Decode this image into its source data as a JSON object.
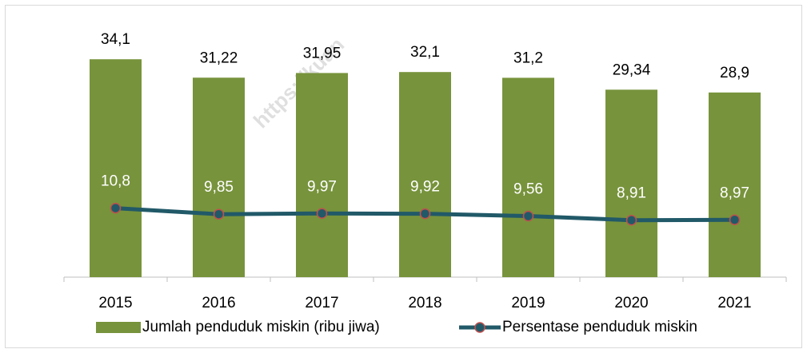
{
  "chart_data": {
    "type": "bar_line",
    "categories": [
      "2015",
      "2016",
      "2017",
      "2018",
      "2019",
      "2020",
      "2021"
    ],
    "series": [
      {
        "name": "Jumlah penduduk miskin (ribu jiwa)",
        "type": "bar",
        "color": "#77933c",
        "values": [
          34.1,
          31.22,
          31.95,
          32.1,
          31.2,
          29.34,
          28.9
        ],
        "value_labels": [
          "34,1",
          "31,22",
          "31,95",
          "32,1",
          "31,2",
          "29,34",
          "28,9"
        ]
      },
      {
        "name": "Persentase penduduk miskin",
        "type": "line",
        "color": "#215968",
        "marker_edge": "#c0504d",
        "values": [
          10.8,
          9.85,
          9.97,
          9.92,
          9.56,
          8.91,
          8.97
        ],
        "value_labels": [
          "10,8",
          "9,85",
          "9,97",
          "9,92",
          "9,56",
          "8,91",
          "8,97"
        ]
      }
    ],
    "ylim": [
      0,
      40
    ],
    "legend": "bottom",
    "watermark": "https://kuan"
  }
}
